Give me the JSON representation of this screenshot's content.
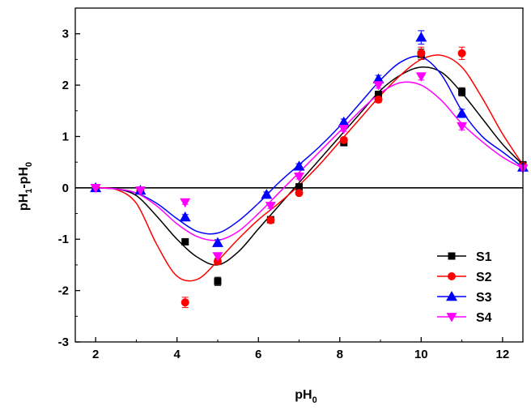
{
  "chart_data": {
    "type": "scatter",
    "title": "",
    "xlabel": {
      "main": "pH",
      "sub": "0"
    },
    "ylabel": {
      "p1": "pH",
      "sub1": "1",
      "p2": "-pH",
      "sub2": "0"
    },
    "xlim": [
      1.5,
      12.5
    ],
    "ylim": [
      -3,
      3.5
    ],
    "xticks": [
      2,
      4,
      6,
      8,
      10,
      12
    ],
    "yticks": [
      -3,
      -2,
      -1,
      0,
      1,
      2,
      3
    ],
    "zero_line": true,
    "legend_position": "bottom-right",
    "series": [
      {
        "name": "S1",
        "color": "#000000",
        "marker": "square",
        "x": [
          2,
          3.1,
          4.2,
          5,
          6.3,
          7,
          8.1,
          8.95,
          10,
          11,
          12.5
        ],
        "y": [
          0,
          -0.05,
          -1.05,
          -1.82,
          -0.62,
          0.02,
          0.88,
          1.82,
          2.6,
          1.87,
          0.45
        ],
        "err": [
          0.03,
          0.03,
          0.05,
          0.08,
          0.05,
          0.04,
          0.05,
          0.06,
          0.1,
          0.08,
          0.05
        ],
        "curve_x": [
          2,
          2.5,
          3,
          3.5,
          4,
          4.5,
          5,
          5.5,
          6,
          6.5,
          7,
          7.5,
          8,
          8.5,
          9,
          9.5,
          10,
          10.5,
          11,
          11.5,
          12,
          12.5
        ],
        "curve_y": [
          0,
          -0.02,
          -0.15,
          -0.55,
          -1.0,
          -1.35,
          -1.5,
          -1.25,
          -0.8,
          -0.35,
          0.1,
          0.55,
          1.0,
          1.45,
          1.9,
          2.2,
          2.35,
          2.25,
          1.85,
          1.35,
          0.85,
          0.45
        ]
      },
      {
        "name": "S2",
        "color": "#ff0000",
        "marker": "circle",
        "x": [
          2,
          3.1,
          4.2,
          5,
          6.3,
          7,
          8.1,
          8.95,
          10,
          11,
          12.5
        ],
        "y": [
          0,
          -0.05,
          -2.23,
          -1.43,
          -0.63,
          -0.1,
          0.93,
          1.72,
          2.62,
          2.62,
          0.43
        ],
        "err": [
          0.03,
          0.03,
          0.1,
          0.06,
          0.05,
          0.04,
          0.05,
          0.06,
          0.12,
          0.12,
          0.05
        ],
        "curve_x": [
          2,
          2.5,
          3,
          3.5,
          4,
          4.5,
          5,
          5.5,
          6,
          6.5,
          7,
          7.5,
          8,
          8.5,
          9,
          9.5,
          10,
          10.5,
          11,
          11.5,
          12,
          12.5
        ],
        "curve_y": [
          0,
          -0.03,
          -0.3,
          -1.1,
          -1.72,
          -1.78,
          -1.42,
          -1.0,
          -0.62,
          -0.3,
          0.05,
          0.45,
          0.9,
          1.35,
          1.8,
          2.2,
          2.5,
          2.58,
          2.35,
          1.75,
          1.05,
          0.45
        ]
      },
      {
        "name": "S3",
        "color": "#0000ff",
        "marker": "triangle-up",
        "x": [
          2,
          3.1,
          4.2,
          5,
          6.2,
          7,
          8.1,
          8.95,
          10,
          11,
          12.5
        ],
        "y": [
          0,
          -0.05,
          -0.57,
          -1.07,
          -0.13,
          0.42,
          1.28,
          2.12,
          2.93,
          1.45,
          0.4
        ],
        "err": [
          0.03,
          0.03,
          0.05,
          0.06,
          0.05,
          0.05,
          0.06,
          0.07,
          0.13,
          0.08,
          0.05
        ],
        "curve_x": [
          2,
          2.5,
          3,
          3.5,
          4,
          4.5,
          5,
          5.5,
          6,
          6.5,
          7,
          7.5,
          8,
          8.5,
          9,
          9.5,
          10,
          10.5,
          11,
          11.5,
          12,
          12.5
        ],
        "curve_y": [
          0,
          -0.02,
          -0.1,
          -0.3,
          -0.6,
          -0.85,
          -0.88,
          -0.65,
          -0.3,
          0.1,
          0.45,
          0.8,
          1.2,
          1.65,
          2.1,
          2.45,
          2.55,
          2.2,
          1.5,
          1.0,
          0.7,
          0.4
        ]
      },
      {
        "name": "S4",
        "color": "#ff00ff",
        "marker": "triangle-down",
        "x": [
          2,
          3.1,
          4.2,
          5,
          6.3,
          7,
          8.1,
          8.95,
          10,
          11,
          12.5
        ],
        "y": [
          0,
          -0.05,
          -0.28,
          -1.33,
          -0.35,
          0.22,
          1.15,
          2.0,
          2.17,
          1.2,
          0.38
        ],
        "err": [
          0.03,
          0.03,
          0.04,
          0.05,
          0.05,
          0.05,
          0.05,
          0.06,
          0.07,
          0.07,
          0.05
        ],
        "curve_x": [
          2,
          2.5,
          3,
          3.5,
          4,
          4.5,
          5,
          5.5,
          6,
          6.5,
          7,
          7.5,
          8,
          8.5,
          9,
          9.5,
          10,
          10.5,
          11,
          11.5,
          12,
          12.5
        ],
        "curve_y": [
          0,
          -0.02,
          -0.1,
          -0.35,
          -0.7,
          -0.95,
          -1.02,
          -0.85,
          -0.5,
          -0.1,
          0.3,
          0.7,
          1.1,
          1.5,
          1.85,
          2.05,
          2.0,
          1.7,
          1.25,
          0.9,
          0.6,
          0.38
        ]
      }
    ]
  }
}
